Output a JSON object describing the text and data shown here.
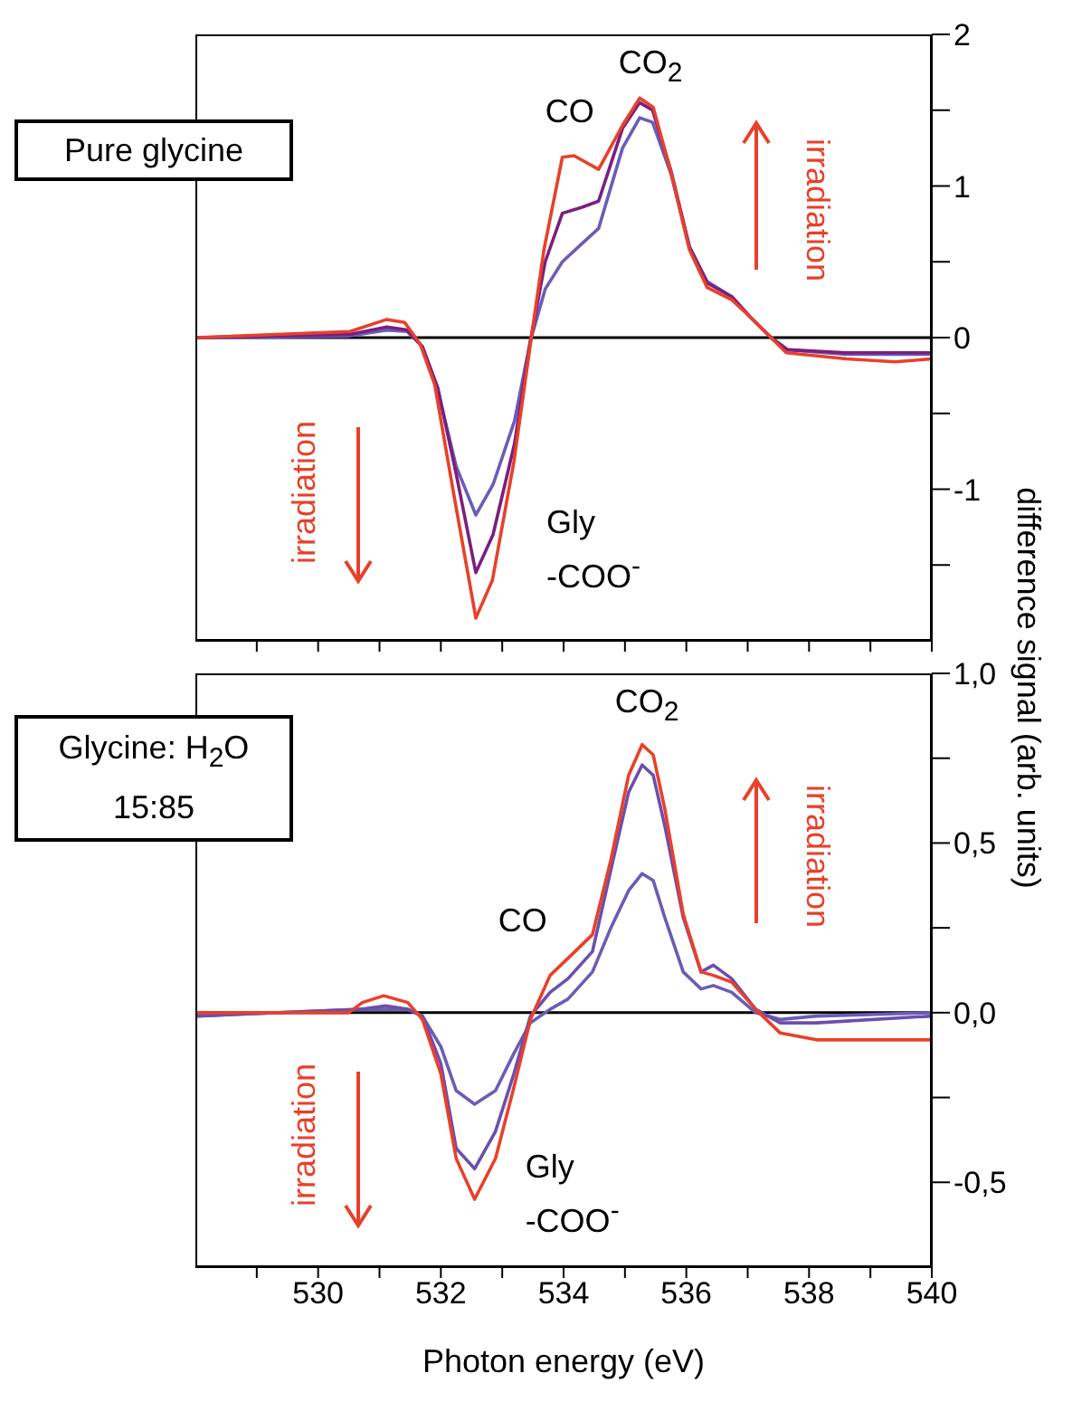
{
  "chart_data": [
    {
      "type": "line",
      "ylabel": "difference signal (arb. units)",
      "xlim": [
        528,
        540
      ],
      "ylim": [
        -2,
        2
      ],
      "tick_labels": "y",
      "xticks": [
        {
          "value": 529,
          "label": null
        },
        530,
        {
          "value": 531,
          "label": null
        },
        532,
        {
          "value": 533,
          "label": null
        },
        534,
        {
          "value": 535,
          "label": null
        },
        536,
        {
          "value": 537,
          "label": null
        },
        538,
        {
          "value": 539,
          "label": null
        },
        540
      ],
      "yticks": [
        -1,
        {
          "value": -1.5,
          "label": null
        },
        {
          "value": -0.5,
          "label": null
        },
        0,
        {
          "value": 0.5,
          "label": null
        },
        1,
        {
          "value": 1.5,
          "label": null
        },
        2
      ],
      "ref_lines": [
        {
          "axis": "y",
          "value": 0,
          "color": "#000000"
        }
      ],
      "annotations": [
        "Pure glycine",
        "irradiation",
        "irradiation",
        {
          "text": "CO",
          "x": 534.1,
          "y": 1.2
        },
        {
          "text": "CO$_{2}$",
          "x": 535.3,
          "y": 1.58
        },
        {
          "text": "Gly\n-COO$^{-}$",
          "x": 532.6,
          "y": -1.85
        }
      ],
      "series": [
        {
          "color": "#6a5cb8",
          "x": [
            528,
            530.5,
            531.12,
            531.45,
            531.7,
            531.95,
            532.25,
            532.57,
            532.85,
            533.2,
            533.46,
            533.7,
            533.98,
            534.3,
            534.57,
            534.96,
            535.24,
            535.45,
            535.75,
            536.05,
            536.34,
            536.74,
            537.03,
            537.38,
            537.65,
            538.6,
            540
          ],
          "values": [
            0,
            0.01,
            0.05,
            0.04,
            -0.06,
            -0.35,
            -0.85,
            -1.17,
            -0.97,
            -0.55,
            -0.02,
            0.32,
            0.5,
            0.62,
            0.72,
            1.25,
            1.45,
            1.42,
            1.08,
            0.6,
            0.37,
            0.27,
            0.14,
            0,
            -0.08,
            -0.11,
            -0.11
          ]
        },
        {
          "color": "#7a1f7f",
          "x": [
            528,
            530.5,
            531.12,
            531.45,
            531.7,
            531.95,
            532.25,
            532.57,
            532.85,
            533.2,
            533.46,
            533.7,
            533.98,
            534.3,
            534.57,
            534.96,
            535.24,
            535.45,
            535.75,
            536.05,
            536.34,
            536.74,
            537.03,
            537.38,
            537.65,
            538.6,
            540
          ],
          "values": [
            0,
            0.02,
            0.07,
            0.05,
            -0.06,
            -0.33,
            -0.9,
            -1.55,
            -1.3,
            -0.7,
            -0.02,
            0.5,
            0.82,
            0.86,
            0.9,
            1.38,
            1.55,
            1.5,
            1.1,
            0.6,
            0.36,
            0.27,
            0.14,
            0,
            -0.08,
            -0.1,
            -0.1
          ]
        },
        {
          "color": "#e8402a",
          "x": [
            528,
            530.52,
            531.12,
            531.41,
            531.66,
            531.9,
            532.2,
            532.57,
            532.84,
            533.19,
            533.46,
            533.68,
            533.98,
            534.17,
            534.57,
            534.96,
            535.24,
            535.46,
            535.75,
            536.05,
            536.34,
            536.74,
            537.03,
            537.38,
            537.63,
            538.61,
            539.4,
            540
          ],
          "values": [
            0,
            0.04,
            0.12,
            0.1,
            -0.04,
            -0.31,
            -1.01,
            -1.85,
            -1.6,
            -0.82,
            -0.04,
            0.58,
            1.19,
            1.2,
            1.11,
            1.4,
            1.58,
            1.52,
            1.09,
            0.58,
            0.33,
            0.25,
            0.14,
            0,
            -0.1,
            -0.14,
            -0.16,
            -0.14
          ]
        }
      ]
    },
    {
      "type": "line",
      "xlabel": "Photon energy (eV)",
      "xlim": [
        528,
        540
      ],
      "ylim": [
        -0.75,
        1.0
      ],
      "xticks": [
        {
          "value": 529,
          "label": null
        },
        530,
        {
          "value": 531,
          "label": null
        },
        532,
        {
          "value": 533,
          "label": null
        },
        534,
        {
          "value": 535,
          "label": null
        },
        536,
        {
          "value": 537,
          "label": null
        },
        538,
        {
          "value": 539,
          "label": null
        },
        540
      ],
      "yticks": [
        {
          "value": -0.5,
          "label": "-0,5"
        },
        {
          "value": -0.25,
          "label": null
        },
        {
          "value": 0,
          "label": "0,0"
        },
        {
          "value": 0.25,
          "label": null
        },
        {
          "value": 0.5,
          "label": "0,5"
        },
        {
          "value": 0.75,
          "label": null
        },
        {
          "value": 1.0,
          "label": "1,0"
        }
      ],
      "ref_lines": [
        {
          "axis": "y",
          "value": 0,
          "color": "#000000"
        }
      ],
      "annotations": [
        "Glycine: H$_{2}$O\n15:85",
        "irradiation",
        "irradiation",
        {
          "text": "CO",
          "x": 534.1,
          "y": 0.16
        },
        {
          "text": "CO$_{2}$",
          "x": 535.3,
          "y": 0.79
        },
        {
          "text": "Gly\n-COO$^{-}$",
          "x": 532.55,
          "y": -0.55
        }
      ],
      "series": [
        {
          "color": "#6b5cb5",
          "x": [
            528,
            530.7,
            531.46,
            531.7,
            532.0,
            532.25,
            532.55,
            532.89,
            533.19,
            533.46,
            533.78,
            534.07,
            534.47,
            534.77,
            535.06,
            535.28,
            535.46,
            535.65,
            535.95,
            536.24,
            536.44,
            536.74,
            537.13,
            537.53,
            538.12,
            540
          ],
          "values": [
            -0.01,
            0.01,
            0.01,
            -0.01,
            -0.1,
            -0.23,
            -0.27,
            -0.23,
            -0.12,
            -0.03,
            0.01,
            0.04,
            0.12,
            0.25,
            0.36,
            0.41,
            0.39,
            0.28,
            0.12,
            0.07,
            0.08,
            0.06,
            0,
            -0.02,
            -0.01,
            0
          ]
        },
        {
          "color": "#6a4faf",
          "x": [
            528,
            530.7,
            531.1,
            531.46,
            531.7,
            532.0,
            532.25,
            532.55,
            532.89,
            533.19,
            533.46,
            533.78,
            534.07,
            534.47,
            534.77,
            535.06,
            535.28,
            535.46,
            535.65,
            535.95,
            536.24,
            536.44,
            536.74,
            537.13,
            537.53,
            538.12,
            540
          ],
          "values": [
            -0.01,
            0.01,
            0.02,
            0.01,
            -0.01,
            -0.15,
            -0.4,
            -0.46,
            -0.35,
            -0.18,
            -0.01,
            0.06,
            0.1,
            0.18,
            0.42,
            0.65,
            0.73,
            0.7,
            0.55,
            0.28,
            0.12,
            0.14,
            0.1,
            0.01,
            -0.03,
            -0.03,
            -0.01
          ]
        },
        {
          "color": "#e8402a",
          "x": [
            528,
            530.5,
            530.72,
            531.07,
            531.46,
            531.7,
            532.0,
            532.25,
            532.55,
            532.89,
            533.19,
            533.46,
            533.78,
            534.07,
            534.47,
            534.77,
            535.06,
            535.28,
            535.46,
            535.65,
            535.95,
            536.24,
            536.44,
            536.74,
            537.13,
            537.53,
            538.12,
            540
          ],
          "values": [
            0,
            0,
            0.03,
            0.05,
            0.03,
            -0.02,
            -0.18,
            -0.43,
            -0.55,
            -0.43,
            -0.22,
            -0.02,
            0.11,
            0.16,
            0.23,
            0.45,
            0.7,
            0.79,
            0.76,
            0.6,
            0.29,
            0.12,
            0.11,
            0.09,
            0.01,
            -0.06,
            -0.08,
            -0.08
          ]
        }
      ]
    }
  ]
}
